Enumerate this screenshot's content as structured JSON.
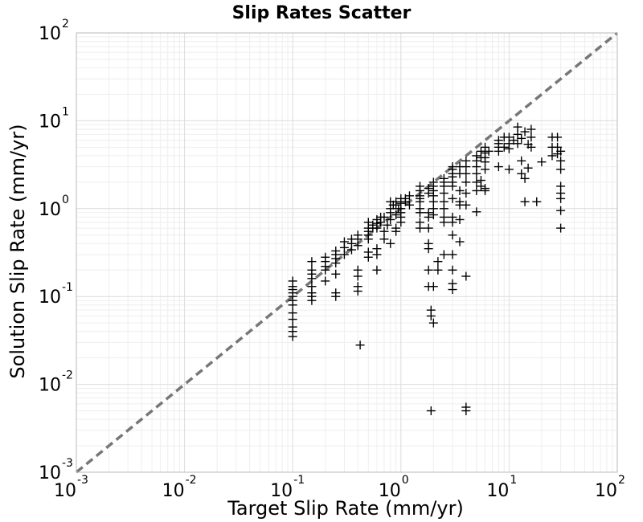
{
  "chart_data": {
    "type": "scatter",
    "title": "Slip Rates Scatter",
    "xlabel": "Target Slip Rate (mm/yr)",
    "ylabel": "Solution Slip Rate (mm/yr)",
    "x_scale": "log",
    "y_scale": "log",
    "xlim": [
      0.001,
      100
    ],
    "ylim": [
      0.001,
      100
    ],
    "grid": true,
    "reference_line": {
      "style": "dashed",
      "color": "#777777",
      "from": [
        0.001,
        0.001
      ],
      "to": [
        100,
        100
      ]
    },
    "marker": "+",
    "marker_color": "#000000",
    "x_ticks": [
      {
        "base": "10",
        "exp": "-3",
        "value": 0.001
      },
      {
        "base": "10",
        "exp": "-2",
        "value": 0.01
      },
      {
        "base": "10",
        "exp": "-1",
        "value": 0.1
      },
      {
        "base": "10",
        "exp": "0",
        "value": 1
      },
      {
        "base": "10",
        "exp": "1",
        "value": 10
      },
      {
        "base": "10",
        "exp": "2",
        "value": 100
      }
    ],
    "y_ticks": [
      {
        "base": "10",
        "exp": "-3",
        "value": 0.001
      },
      {
        "base": "10",
        "exp": "-2",
        "value": 0.01
      },
      {
        "base": "10",
        "exp": "-1",
        "value": 0.1
      },
      {
        "base": "10",
        "exp": "0",
        "value": 1
      },
      {
        "base": "10",
        "exp": "1",
        "value": 10
      },
      {
        "base": "10",
        "exp": "2",
        "value": 100
      }
    ],
    "points": [
      [
        0.1,
        0.08
      ],
      [
        0.1,
        0.09
      ],
      [
        0.1,
        0.1
      ],
      [
        0.1,
        0.11
      ],
      [
        0.1,
        0.12
      ],
      [
        0.1,
        0.065
      ],
      [
        0.1,
        0.055
      ],
      [
        0.1,
        0.045
      ],
      [
        0.1,
        0.04
      ],
      [
        0.1,
        0.035
      ],
      [
        0.1,
        0.15
      ],
      [
        0.1,
        0.13
      ],
      [
        0.15,
        0.13
      ],
      [
        0.15,
        0.16
      ],
      [
        0.15,
        0.18
      ],
      [
        0.15,
        0.2
      ],
      [
        0.15,
        0.25
      ],
      [
        0.15,
        0.11
      ],
      [
        0.15,
        0.09
      ],
      [
        0.15,
        0.1
      ],
      [
        0.2,
        0.28
      ],
      [
        0.2,
        0.22
      ],
      [
        0.2,
        0.2
      ],
      [
        0.2,
        0.15
      ],
      [
        0.2,
        0.25
      ],
      [
        0.25,
        0.3
      ],
      [
        0.25,
        0.33
      ],
      [
        0.25,
        0.27
      ],
      [
        0.25,
        0.24
      ],
      [
        0.25,
        0.18
      ],
      [
        0.25,
        0.11
      ],
      [
        0.25,
        0.1
      ],
      [
        0.3,
        0.42
      ],
      [
        0.3,
        0.36
      ],
      [
        0.3,
        0.3
      ],
      [
        0.35,
        0.45
      ],
      [
        0.35,
        0.4
      ],
      [
        0.35,
        0.34
      ],
      [
        0.4,
        0.5
      ],
      [
        0.4,
        0.45
      ],
      [
        0.4,
        0.38
      ],
      [
        0.4,
        0.13
      ],
      [
        0.4,
        0.115
      ],
      [
        0.4,
        0.17
      ],
      [
        0.4,
        0.2
      ],
      [
        0.42,
        0.028
      ],
      [
        0.5,
        0.55
      ],
      [
        0.5,
        0.6
      ],
      [
        0.5,
        0.7
      ],
      [
        0.5,
        0.5
      ],
      [
        0.5,
        0.45
      ],
      [
        0.5,
        0.32
      ],
      [
        0.5,
        0.28
      ],
      [
        0.55,
        0.6
      ],
      [
        0.55,
        0.65
      ],
      [
        0.6,
        0.2
      ],
      [
        0.6,
        0.3
      ],
      [
        0.6,
        0.35
      ],
      [
        0.6,
        0.75
      ],
      [
        0.6,
        0.68
      ],
      [
        0.6,
        0.6
      ],
      [
        0.65,
        0.7
      ],
      [
        0.65,
        0.8
      ],
      [
        0.7,
        0.8
      ],
      [
        0.7,
        0.55
      ],
      [
        0.7,
        0.45
      ],
      [
        0.75,
        0.65
      ],
      [
        0.8,
        0.9
      ],
      [
        0.8,
        0.75
      ],
      [
        0.8,
        0.4
      ],
      [
        0.8,
        1.0
      ],
      [
        0.8,
        1.2
      ],
      [
        0.85,
        1.1
      ],
      [
        0.9,
        1.1
      ],
      [
        0.9,
        1.2
      ],
      [
        0.9,
        0.85
      ],
      [
        0.9,
        0.6
      ],
      [
        0.9,
        0.55
      ],
      [
        0.95,
        1.0
      ],
      [
        1.0,
        0.9
      ],
      [
        1.0,
        1.0
      ],
      [
        1.0,
        1.15
      ],
      [
        1.0,
        1.3
      ],
      [
        1.0,
        0.8
      ],
      [
        1.0,
        0.7
      ],
      [
        1.1,
        1.2
      ],
      [
        1.1,
        1.3
      ],
      [
        1.2,
        1.1
      ],
      [
        1.2,
        1.4
      ],
      [
        1.5,
        1.3
      ],
      [
        1.5,
        1.4
      ],
      [
        1.5,
        1.6
      ],
      [
        1.5,
        1.8
      ],
      [
        1.5,
        1.2
      ],
      [
        1.5,
        1.0
      ],
      [
        1.5,
        0.9
      ],
      [
        1.5,
        0.7
      ],
      [
        1.5,
        0.6
      ],
      [
        1.8,
        1.7
      ],
      [
        1.8,
        1.5
      ],
      [
        1.8,
        0.9
      ],
      [
        1.8,
        0.8
      ],
      [
        1.8,
        0.6
      ],
      [
        1.8,
        0.4
      ],
      [
        1.8,
        0.35
      ],
      [
        1.8,
        0.2
      ],
      [
        1.8,
        0.13
      ],
      [
        1.9,
        0.06
      ],
      [
        1.9,
        0.07
      ],
      [
        2.0,
        0.05
      ],
      [
        1.9,
        0.005
      ],
      [
        2.0,
        2.0
      ],
      [
        2.0,
        1.8
      ],
      [
        2.0,
        1.6
      ],
      [
        2.0,
        1.4
      ],
      [
        2.0,
        1.2
      ],
      [
        2.0,
        1.0
      ],
      [
        2.0,
        0.85
      ],
      [
        2.0,
        0.13
      ],
      [
        2.5,
        2.2
      ],
      [
        2.5,
        2.0
      ],
      [
        2.5,
        1.8
      ],
      [
        2.5,
        1.5
      ],
      [
        2.5,
        1.2
      ],
      [
        2.5,
        1.0
      ],
      [
        2.5,
        0.8
      ],
      [
        2.5,
        0.7
      ],
      [
        2.5,
        0.3
      ],
      [
        2.2,
        0.25
      ],
      [
        2.2,
        0.2
      ],
      [
        3.0,
        2.5
      ],
      [
        3.0,
        2.8
      ],
      [
        3.0,
        3.0
      ],
      [
        3.0,
        2.3
      ],
      [
        3.0,
        2.0
      ],
      [
        3.0,
        1.8
      ],
      [
        3.0,
        1.3
      ],
      [
        3.0,
        0.8
      ],
      [
        3.0,
        0.7
      ],
      [
        3.0,
        0.5
      ],
      [
        3.0,
        0.3
      ],
      [
        3.0,
        0.2
      ],
      [
        3.0,
        0.12
      ],
      [
        3.0,
        0.14
      ],
      [
        3.5,
        3.0
      ],
      [
        3.5,
        2.5
      ],
      [
        3.5,
        1.6
      ],
      [
        3.5,
        1.2
      ],
      [
        3.5,
        1.1
      ],
      [
        3.5,
        0.75
      ],
      [
        3.5,
        0.42
      ],
      [
        4.0,
        3.5
      ],
      [
        4.0,
        3.0
      ],
      [
        4.0,
        2.5
      ],
      [
        4.0,
        2.0
      ],
      [
        4.0,
        1.5
      ],
      [
        4.0,
        1.1
      ],
      [
        4.0,
        0.17
      ],
      [
        4.0,
        0.005
      ],
      [
        4.0,
        0.0055
      ],
      [
        5.0,
        4.0
      ],
      [
        5.0,
        3.5
      ],
      [
        5.0,
        3.0
      ],
      [
        5.0,
        2.5
      ],
      [
        5.0,
        2.0
      ],
      [
        5.0,
        1.6
      ],
      [
        5.0,
        0.92
      ],
      [
        5.5,
        4.5
      ],
      [
        5.5,
        3.8
      ],
      [
        5.5,
        2.1
      ],
      [
        5.5,
        1.8
      ],
      [
        6.0,
        5.0
      ],
      [
        6.0,
        4.3
      ],
      [
        6.0,
        3.8
      ],
      [
        6.0,
        3.4
      ],
      [
        6.0,
        2.8
      ],
      [
        6.0,
        1.6
      ],
      [
        6.0,
        1.7
      ],
      [
        6.5,
        4.5
      ],
      [
        8.0,
        6.0
      ],
      [
        8.0,
        5.5
      ],
      [
        8.0,
        5.0
      ],
      [
        8.0,
        4.5
      ],
      [
        8.0,
        3.0
      ],
      [
        9.0,
        6.5
      ],
      [
        9.0,
        5.0
      ],
      [
        10.0,
        6.5
      ],
      [
        10.0,
        5.5
      ],
      [
        10.0,
        4.8
      ],
      [
        10.0,
        2.8
      ],
      [
        11.0,
        6.0
      ],
      [
        12.0,
        7.0
      ],
      [
        12.0,
        8.5
      ],
      [
        12.0,
        5.5
      ],
      [
        13.0,
        6.3
      ],
      [
        13.0,
        3.5
      ],
      [
        13.0,
        2.5
      ],
      [
        14.0,
        7.5
      ],
      [
        14.0,
        2.2
      ],
      [
        14.0,
        1.2
      ],
      [
        15.0,
        2.9
      ],
      [
        15.0,
        5.4
      ],
      [
        16.0,
        8.0
      ],
      [
        16.0,
        6.5
      ],
      [
        16.0,
        5.0
      ],
      [
        18.0,
        1.2
      ],
      [
        20.0,
        3.4
      ],
      [
        25.0,
        6.5
      ],
      [
        25.0,
        5.0
      ],
      [
        25.0,
        4.0
      ],
      [
        28.0,
        6.5
      ],
      [
        28.0,
        5.0
      ],
      [
        28.0,
        4.2
      ],
      [
        30.0,
        4.5
      ],
      [
        30.0,
        3.5
      ],
      [
        30.0,
        2.8
      ],
      [
        30.0,
        1.8
      ],
      [
        30.0,
        1.5
      ],
      [
        30.0,
        1.3
      ],
      [
        30.0,
        0.95
      ],
      [
        30.0,
        0.6
      ]
    ]
  }
}
